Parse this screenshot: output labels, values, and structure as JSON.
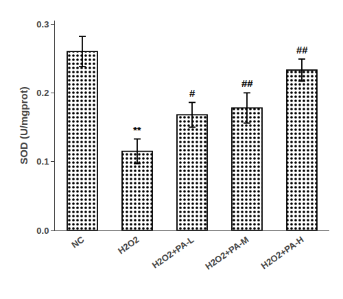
{
  "chart_data": {
    "type": "bar",
    "categories": [
      "NC",
      "H2O2",
      "H2O2+PA-L",
      "H2O2+PA-M",
      "H2O2+PA-H"
    ],
    "values": [
      0.26,
      0.115,
      0.168,
      0.178,
      0.233
    ],
    "errors": [
      0.022,
      0.018,
      0.018,
      0.022,
      0.016
    ],
    "color": "#ffffff",
    "ylabel": "SOD (U/mgprot)",
    "ylim": [
      0.0,
      0.305
    ],
    "yticks": [
      {
        "value": 0,
        "label": "0.0"
      },
      0.1,
      0.2,
      0.3
    ],
    "annotations": [
      {
        "category": "H2O2",
        "text": "**"
      },
      {
        "category": "H2O2+PA-L",
        "text": "#"
      },
      {
        "category": "H2O2+PA-M",
        "text": "##"
      },
      {
        "category": "H2O2+PA-H",
        "text": "##"
      }
    ],
    "grid": false
  }
}
